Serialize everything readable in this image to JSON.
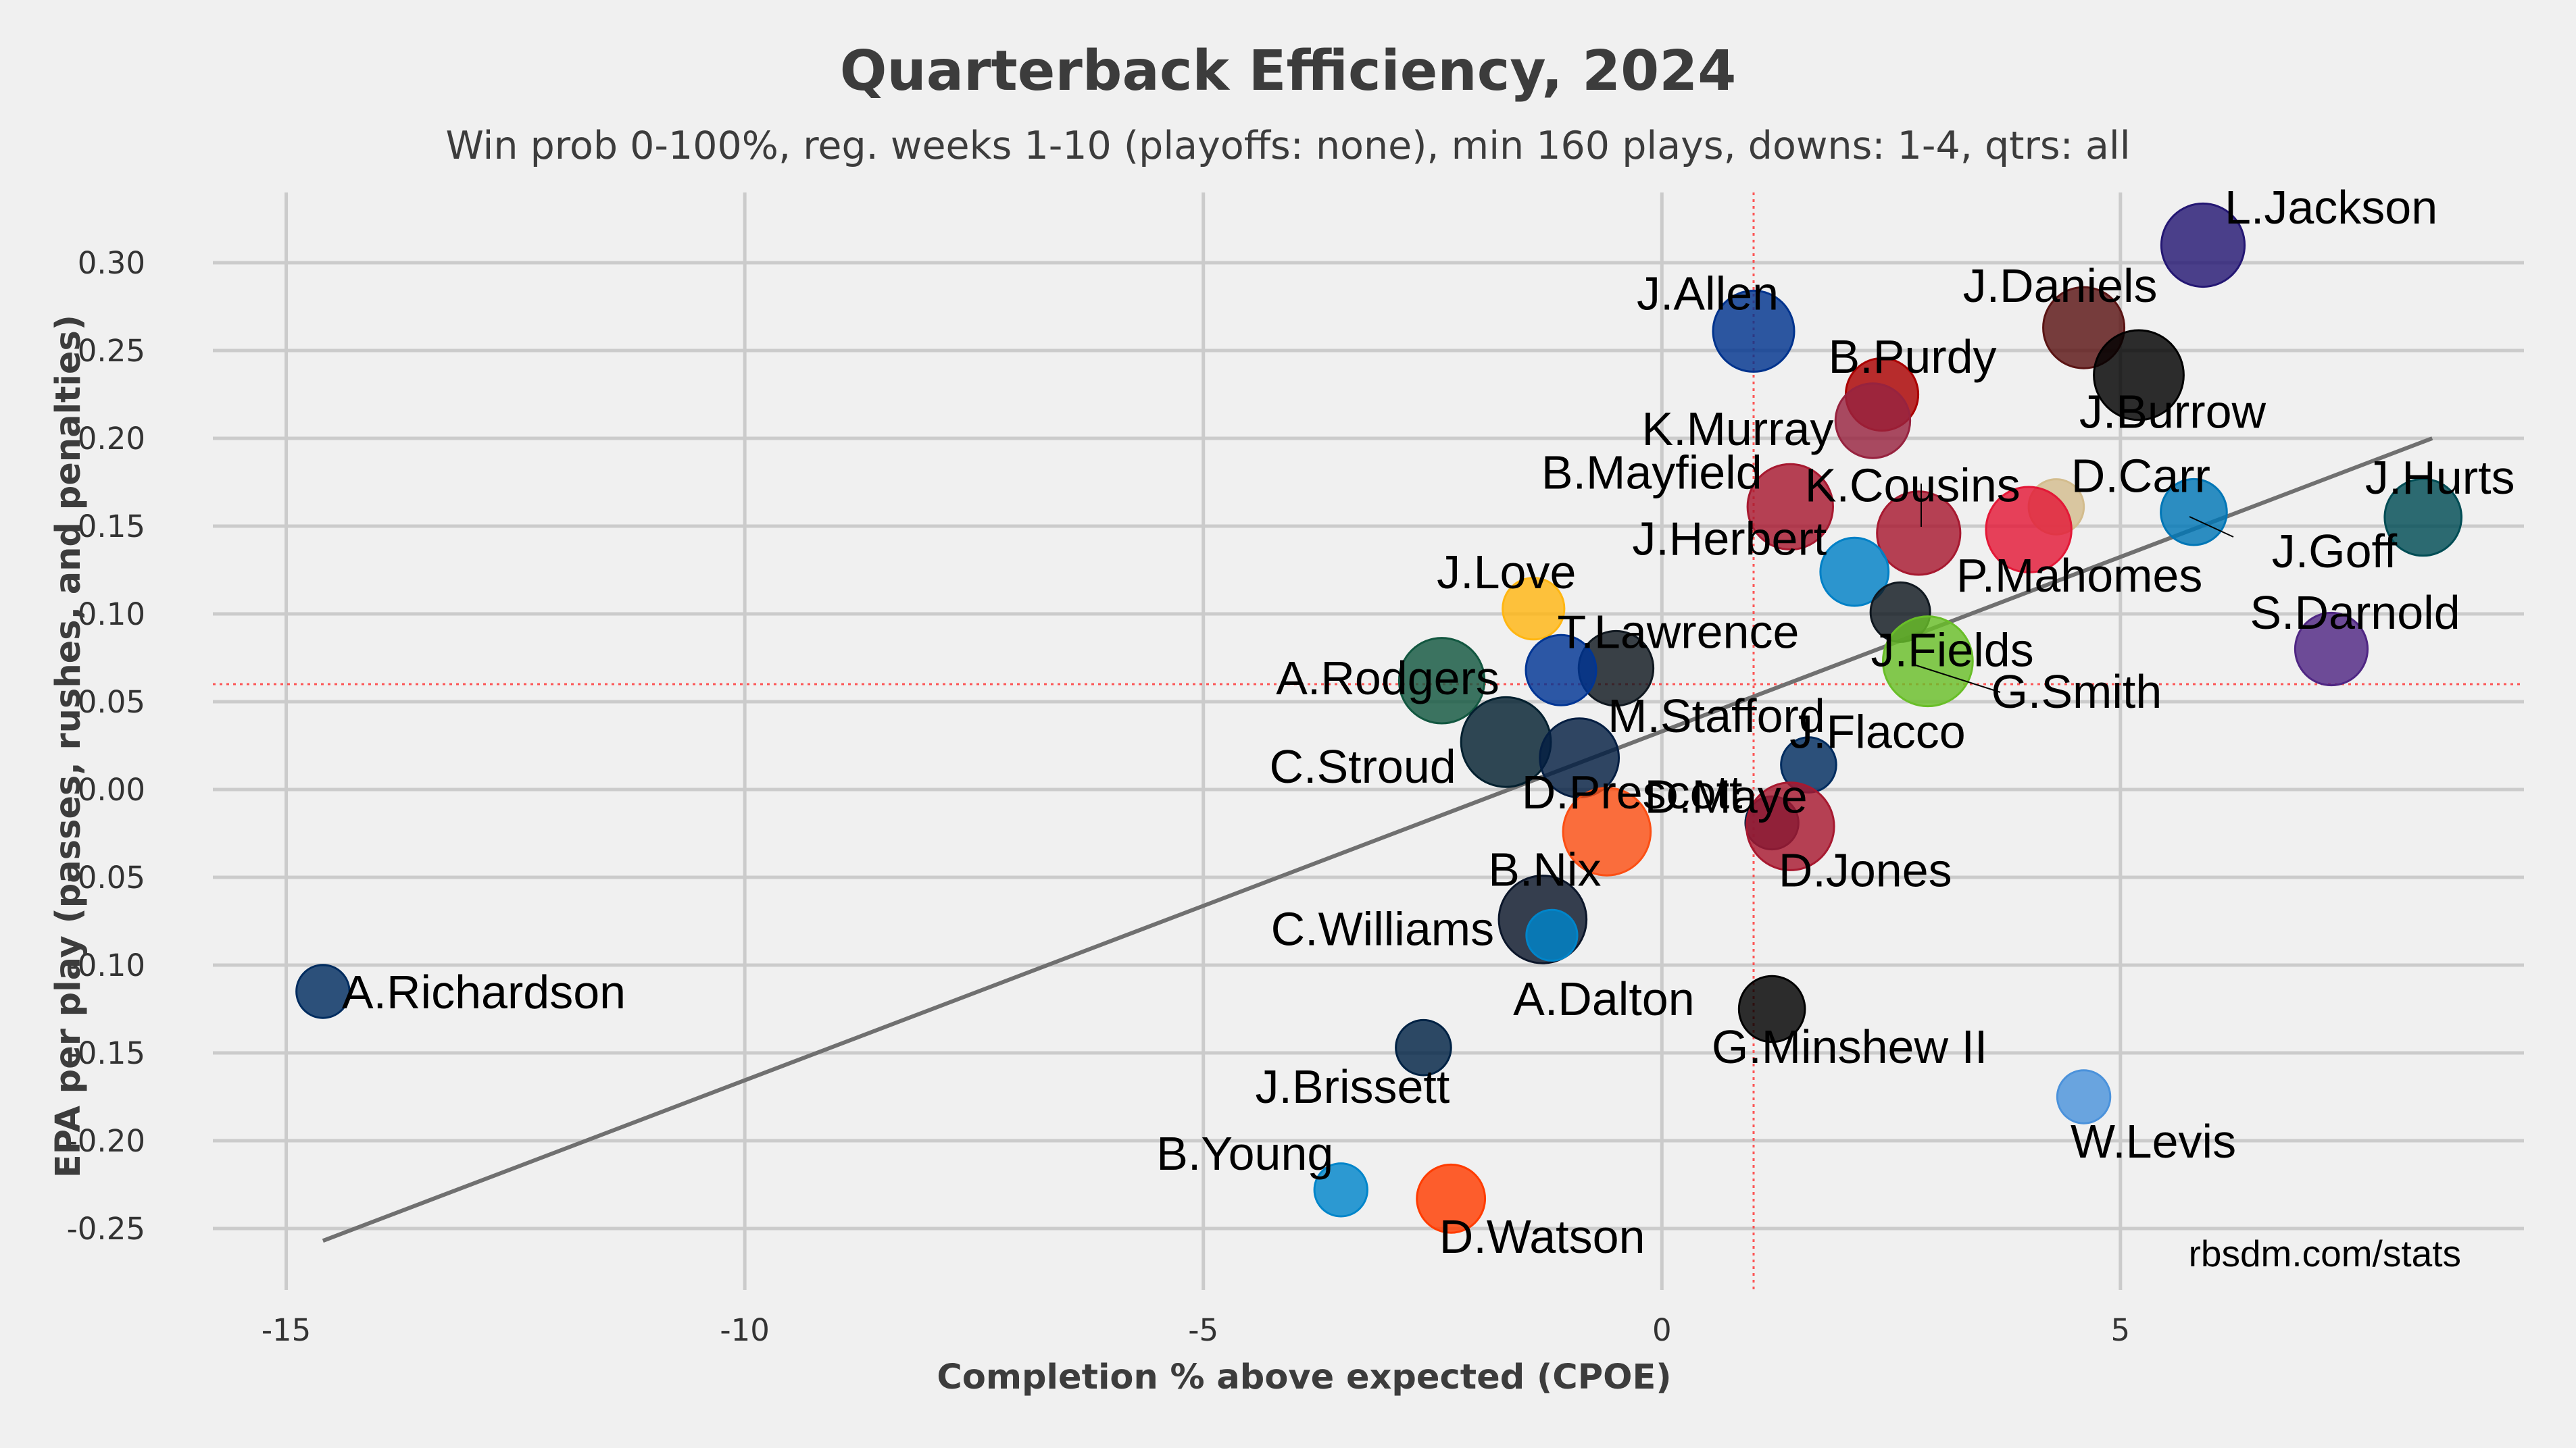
{
  "chart_data": {
    "type": "scatter",
    "title": "Quarterback Efficiency, 2024",
    "subtitle": "Win prob 0-100%, reg. weeks 1-10 (playoffs: none), min 160 plays, downs: 1-4, qtrs: all",
    "xlabel": "Completion % above expected (CPOE)",
    "ylabel": "EPA per play (passes, rushes, and penalties)",
    "xlim": [
      -15.8,
      9.4
    ],
    "ylim": [
      -0.285,
      0.34
    ],
    "x_ticks": [
      -15,
      -10,
      -5,
      0,
      5
    ],
    "x_tick_labels": [
      "-15",
      "-10",
      "-5",
      "0",
      "5"
    ],
    "y_ticks": [
      0.3,
      0.25,
      0.2,
      0.15,
      0.1,
      0.05,
      0.0,
      -0.05,
      -0.1,
      -0.15,
      -0.2,
      -0.25
    ],
    "y_tick_labels": [
      "0.30",
      "0.25",
      "0.20",
      "0.15",
      "0.10",
      "0.05",
      "0.00",
      "-0.05",
      "-0.10",
      "-0.15",
      "-0.20",
      "-0.25"
    ],
    "grid": true,
    "mean_lines": {
      "x": 1.0,
      "y": 0.06,
      "color": "#ff3b3b"
    },
    "trend_line": {
      "x": [
        -14.6,
        8.4
      ],
      "y": [
        -0.257,
        0.2
      ],
      "color": "#707070"
    },
    "credit": "rbsdm.com/stats",
    "points": [
      {
        "name": "L.Jackson",
        "x": 5.9,
        "y": 0.31,
        "plays": 310,
        "color": "#241773"
      },
      {
        "name": "J.Daniels",
        "x": 4.6,
        "y": 0.263,
        "plays": 300,
        "color": "#5a1414"
      },
      {
        "name": "J.Burrow",
        "x": 5.2,
        "y": 0.236,
        "plays": 340,
        "color": "#000000"
      },
      {
        "name": "J.Allen",
        "x": 1.0,
        "y": 0.261,
        "plays": 300,
        "color": "#00338d"
      },
      {
        "name": "B.Purdy",
        "x": 2.4,
        "y": 0.225,
        "plays": 260,
        "color": "#aa0000"
      },
      {
        "name": "K.Murray",
        "x": 2.3,
        "y": 0.21,
        "plays": 270,
        "color": "#97233f"
      },
      {
        "name": "D.Carr",
        "x": 4.3,
        "y": 0.161,
        "plays": 180,
        "color": "#d3bc8d"
      },
      {
        "name": "J.Goff",
        "x": 5.8,
        "y": 0.158,
        "plays": 230,
        "color": "#0076b6"
      },
      {
        "name": "J.Hurts",
        "x": 8.3,
        "y": 0.155,
        "plays": 280,
        "color": "#004c54"
      },
      {
        "name": "B.Mayfield",
        "x": 1.4,
        "y": 0.161,
        "plays": 320,
        "color": "#a71930"
      },
      {
        "name": "K.Cousins",
        "x": 2.8,
        "y": 0.146,
        "plays": 310,
        "color": "#a71930"
      },
      {
        "name": "P.Mahomes",
        "x": 4.0,
        "y": 0.148,
        "plays": 320,
        "color": "#e31837"
      },
      {
        "name": "J.Herbert",
        "x": 2.1,
        "y": 0.124,
        "plays": 240,
        "color": "#0080c6"
      },
      {
        "name": "J.Love",
        "x": -1.4,
        "y": 0.103,
        "plays": 210,
        "color": "#ffb612"
      },
      {
        "name": "J.Fields",
        "x": 2.6,
        "y": 0.101,
        "plays": 200,
        "color": "#101820"
      },
      {
        "name": "S.Darnold",
        "x": 7.3,
        "y": 0.08,
        "plays": 260,
        "color": "#4f2683"
      },
      {
        "name": "G.Smith",
        "x": 2.9,
        "y": 0.073,
        "plays": 340,
        "color": "#69be28"
      },
      {
        "name": "T.Lawrence",
        "x": -0.5,
        "y": 0.069,
        "plays": 270,
        "color": "#101820"
      },
      {
        "name": "A.Rodgers",
        "x": -2.4,
        "y": 0.062,
        "plays": 320,
        "color": "#125740"
      },
      {
        "name": "M.Stafford",
        "x": -1.1,
        "y": 0.068,
        "plays": 250,
        "color": "#003594"
      },
      {
        "name": "C.Stroud",
        "x": -1.7,
        "y": 0.027,
        "plays": 340,
        "color": "#03202f"
      },
      {
        "name": "D.Prescott",
        "x": -0.9,
        "y": 0.018,
        "plays": 290,
        "color": "#041e42"
      },
      {
        "name": "J.Flacco",
        "x": 1.6,
        "y": 0.014,
        "plays": 180,
        "color": "#002c5f"
      },
      {
        "name": "D.Maye",
        "x": 1.2,
        "y": -0.019,
        "plays": 170,
        "color": "#002244"
      },
      {
        "name": "D.Jones",
        "x": 1.4,
        "y": -0.021,
        "plays": 330,
        "color": "#a71930"
      },
      {
        "name": "B.Nix",
        "x": -0.6,
        "y": -0.024,
        "plays": 330,
        "color": "#fb4f14"
      },
      {
        "name": "C.Williams",
        "x": -1.3,
        "y": -0.074,
        "plays": 330,
        "color": "#0b162a"
      },
      {
        "name": "A.Dalton",
        "x": -1.2,
        "y": -0.083,
        "plays": 160,
        "color": "#0085ca"
      },
      {
        "name": "A.Richardson",
        "x": -14.6,
        "y": -0.115,
        "plays": 170,
        "color": "#002c5f"
      },
      {
        "name": "G.Minshew II",
        "x": 1.2,
        "y": -0.125,
        "plays": 230,
        "color": "#000000"
      },
      {
        "name": "J.Brissett",
        "x": -2.6,
        "y": -0.147,
        "plays": 180,
        "color": "#002244"
      },
      {
        "name": "W.Levis",
        "x": 4.6,
        "y": -0.175,
        "plays": 170,
        "color": "#4b92db"
      },
      {
        "name": "B.Young",
        "x": -3.5,
        "y": -0.228,
        "plays": 170,
        "color": "#0085ca"
      },
      {
        "name": "D.Watson",
        "x": -2.3,
        "y": -0.233,
        "plays": 240,
        "color": "#ff3c00"
      }
    ]
  }
}
